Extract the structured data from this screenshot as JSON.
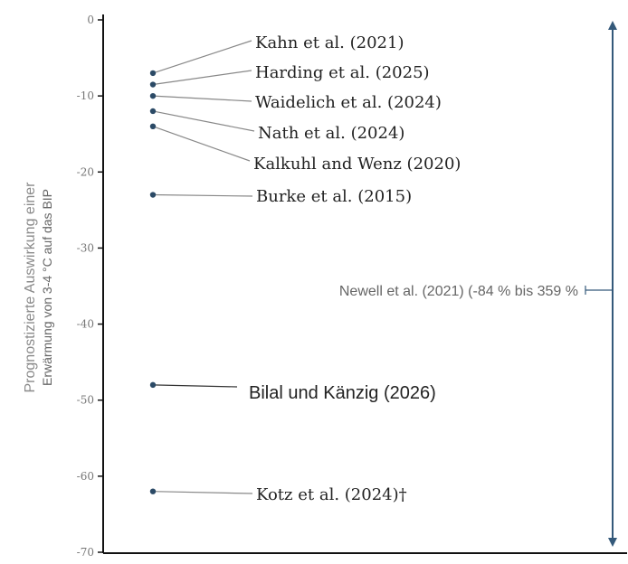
{
  "chart_data": {
    "type": "scatter",
    "title": "",
    "ylabel_lines": [
      "Prognostizierte Auswirkung einer",
      "Erwärmung von 3-4 °C auf das BIP"
    ],
    "ylim": [
      -70,
      0
    ],
    "yticks": [
      0,
      -10,
      -20,
      -30,
      -40,
      -50,
      -60,
      -70
    ],
    "ytick_labels": [
      "0",
      "-10",
      "-20",
      "-30",
      "-40",
      "-50",
      "-60",
      "-70"
    ],
    "grid": false,
    "points": [
      {
        "label": "Kahn et al. (2021)",
        "value": -7
      },
      {
        "label": "Harding et al. (2025)",
        "value": -8.5
      },
      {
        "label": "Waidelich et al. (2024)",
        "value": -10
      },
      {
        "label": "Nath et al. (2024)",
        "value": -12
      },
      {
        "label": "Kalkuhl and Wenz (2020)",
        "value": -14
      },
      {
        "label": "Burke et al. (2015)",
        "value": -23
      },
      {
        "label": "Bilal und Känzig (2026)",
        "value": -48
      },
      {
        "label": "Kotz et al. (2024)†",
        "value": -62
      }
    ],
    "range_annotation": {
      "label": "Newell et al. (2021) (-84 % bis 359 %",
      "range": [
        -84,
        359
      ]
    },
    "colors": {
      "point": "#2b4a66",
      "leader": "#888888",
      "arrow": "#34597a",
      "axis": "#111111"
    }
  }
}
